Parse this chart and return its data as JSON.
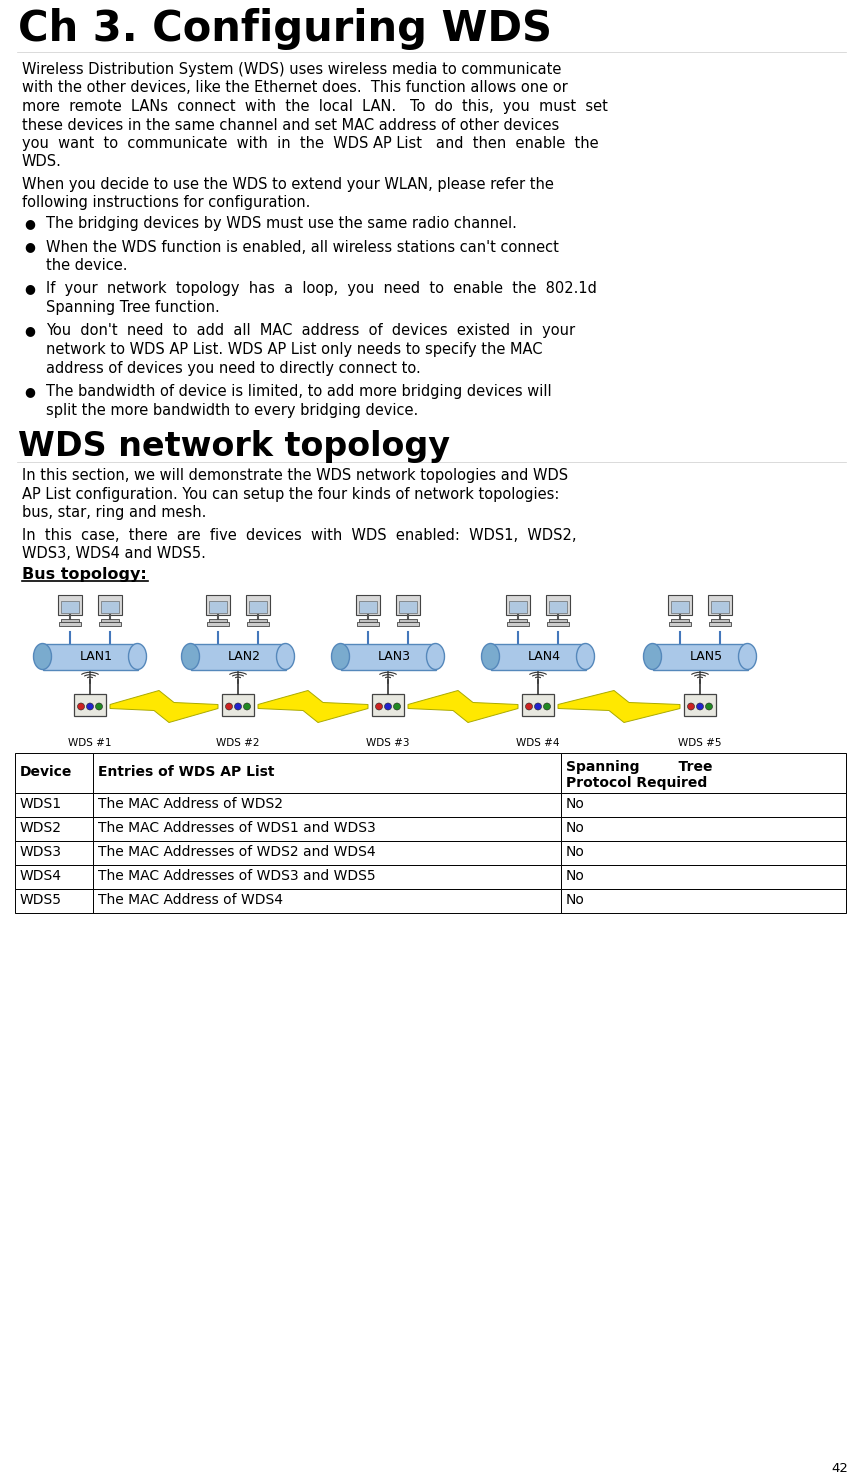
{
  "title": "Ch 3. Configuring WDS",
  "page_number": "42",
  "bg_color": "#ffffff",
  "para1_lines": [
    "Wireless Distribution System (WDS) uses wireless media to communicate",
    "with the other devices, like the Ethernet does.  This function allows one or",
    "more  remote  LANs  connect  with  the  local  LAN.   To  do  this,  you  must  set",
    "these devices in the same channel and set MAC address of other devices",
    "you  want  to  communicate  with  in  the  WDS AP List   and  then  enable  the",
    "WDS."
  ],
  "para2_lines": [
    "When you decide to use the WDS to extend your WLAN, please refer the",
    "following instructions for configuration."
  ],
  "bullet_items": [
    [
      "The bridging devices by WDS must use the same radio channel."
    ],
    [
      "When the WDS function is enabled, all wireless stations can't connect",
      "the device."
    ],
    [
      "If  your  network  topology  has  a  loop,  you  need  to  enable  the  802.1d",
      "Spanning Tree function."
    ],
    [
      "You  don't  need  to  add  all  MAC  address  of  devices  existed  in  your",
      "network to WDS AP List. WDS AP List only needs to specify the MAC",
      "address of devices you need to directly connect to."
    ],
    [
      "The bandwidth of device is limited, to add more bridging devices will",
      "split the more bandwidth to every bridging device."
    ]
  ],
  "section2_title": "WDS network topology",
  "para3_lines": [
    "In this section, we will demonstrate the WDS network topologies and WDS",
    "AP List configuration. You can setup the four kinds of network topologies:",
    "bus, star, ring and mesh."
  ],
  "para4_lines": [
    "In  this  case,  there  are  five  devices  with  WDS  enabled:  WDS1,  WDS2,",
    "WDS3, WDS4 and WDS5."
  ],
  "bus_topology_label": "Bus topology:",
  "lan_labels": [
    "LAN1",
    "LAN2",
    "LAN3",
    "LAN4",
    "LAN5"
  ],
  "wds_labels": [
    "WDS #1",
    "WDS #2",
    "WDS #3",
    "WDS #4",
    "WDS #5"
  ],
  "table_headers": [
    "Device",
    "Entries of WDS AP List",
    "Spanning        Tree\nProtocol Required"
  ],
  "table_rows": [
    [
      "WDS1",
      "The MAC Address of WDS2",
      "No"
    ],
    [
      "WDS2",
      "The MAC Addresses of WDS1 and WDS3",
      "No"
    ],
    [
      "WDS3",
      "The MAC Addresses of WDS2 and WDS4",
      "No"
    ],
    [
      "WDS4",
      "The MAC Addresses of WDS3 and WDS5",
      "No"
    ],
    [
      "WDS5",
      "The MAC Address of WDS4",
      "No"
    ]
  ],
  "lan_x_positions": [
    90,
    238,
    388,
    538,
    700
  ],
  "lan_face_color": "#aac8e8",
  "lan_dark_color": "#7aabce",
  "lan_edge_color": "#5588bb"
}
